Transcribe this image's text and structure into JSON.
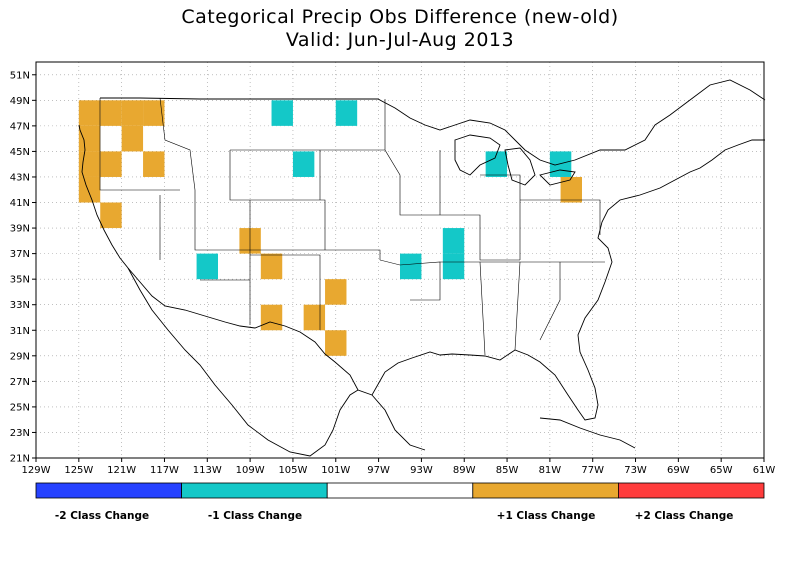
{
  "title_line1": "Categorical Precip Obs Difference (new-old)",
  "title_line2": "Valid: Jun-Jul-Aug 2013",
  "map": {
    "lon_range": [
      -129,
      -61
    ],
    "lat_range": [
      21,
      52
    ],
    "x_ticks": [
      "129W",
      "125W",
      "121W",
      "117W",
      "113W",
      "109W",
      "105W",
      "101W",
      "97W",
      "93W",
      "89W",
      "85W",
      "81W",
      "77W",
      "73W",
      "69W",
      "65W",
      "61W"
    ],
    "y_ticks": [
      "21N",
      "23N",
      "25N",
      "27N",
      "29N",
      "31N",
      "33N",
      "35N",
      "37N",
      "39N",
      "41N",
      "43N",
      "45N",
      "47N",
      "49N",
      "51N"
    ],
    "grid": "dotted",
    "cells_plus1": [
      [
        -125,
        47
      ],
      [
        -123,
        47
      ],
      [
        -121,
        47
      ],
      [
        -119,
        47
      ],
      [
        -125,
        45
      ],
      [
        -121,
        45
      ],
      [
        -125,
        43
      ],
      [
        -123,
        43
      ],
      [
        -119,
        43
      ],
      [
        -125,
        41
      ],
      [
        -123,
        39
      ],
      [
        -110,
        37
      ],
      [
        -108,
        35
      ],
      [
        -108,
        31
      ],
      [
        -104,
        31
      ],
      [
        -102,
        33
      ],
      [
        -102,
        29
      ],
      [
        -80,
        41
      ]
    ],
    "cells_minus1": [
      [
        -107,
        47
      ],
      [
        -101,
        47
      ],
      [
        -105,
        43
      ],
      [
        -87,
        43
      ],
      [
        -81,
        43
      ],
      [
        -114,
        35
      ],
      [
        -95,
        35
      ],
      [
        -91,
        37
      ],
      [
        -91,
        35
      ]
    ]
  },
  "legend": {
    "colors": [
      "#2642ff",
      "#14c8c8",
      "#ffffff",
      "#e8a830",
      "#ff3c3c"
    ],
    "labels": [
      "-2 Class Change",
      "-1 Class Change",
      "+1 Class Change",
      "+2 Class Change"
    ]
  }
}
